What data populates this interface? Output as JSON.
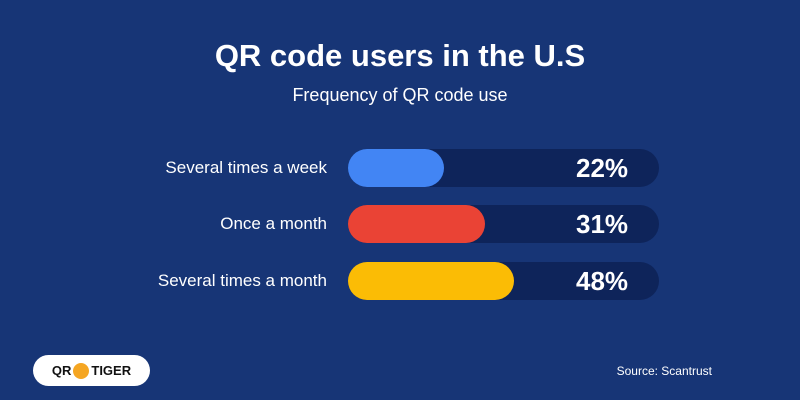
{
  "chart_data": {
    "type": "bar",
    "orientation": "horizontal",
    "title": "QR code users in the U.S",
    "subtitle": "Frequency of QR code use",
    "categories": [
      "Several times a week",
      "Once a month",
      "Several times a month"
    ],
    "values": [
      22,
      31,
      48
    ],
    "value_labels": [
      "22%",
      "31%",
      "48%"
    ],
    "colors": [
      "#4285f4",
      "#ea4335",
      "#fbbc05"
    ],
    "unit": "%",
    "grid": false
  },
  "source": "Source: Scantrust",
  "logo": {
    "text_left": "QR",
    "text_right": "TIGER"
  },
  "colors": {
    "background": "#173576",
    "track": "#0e245a"
  }
}
